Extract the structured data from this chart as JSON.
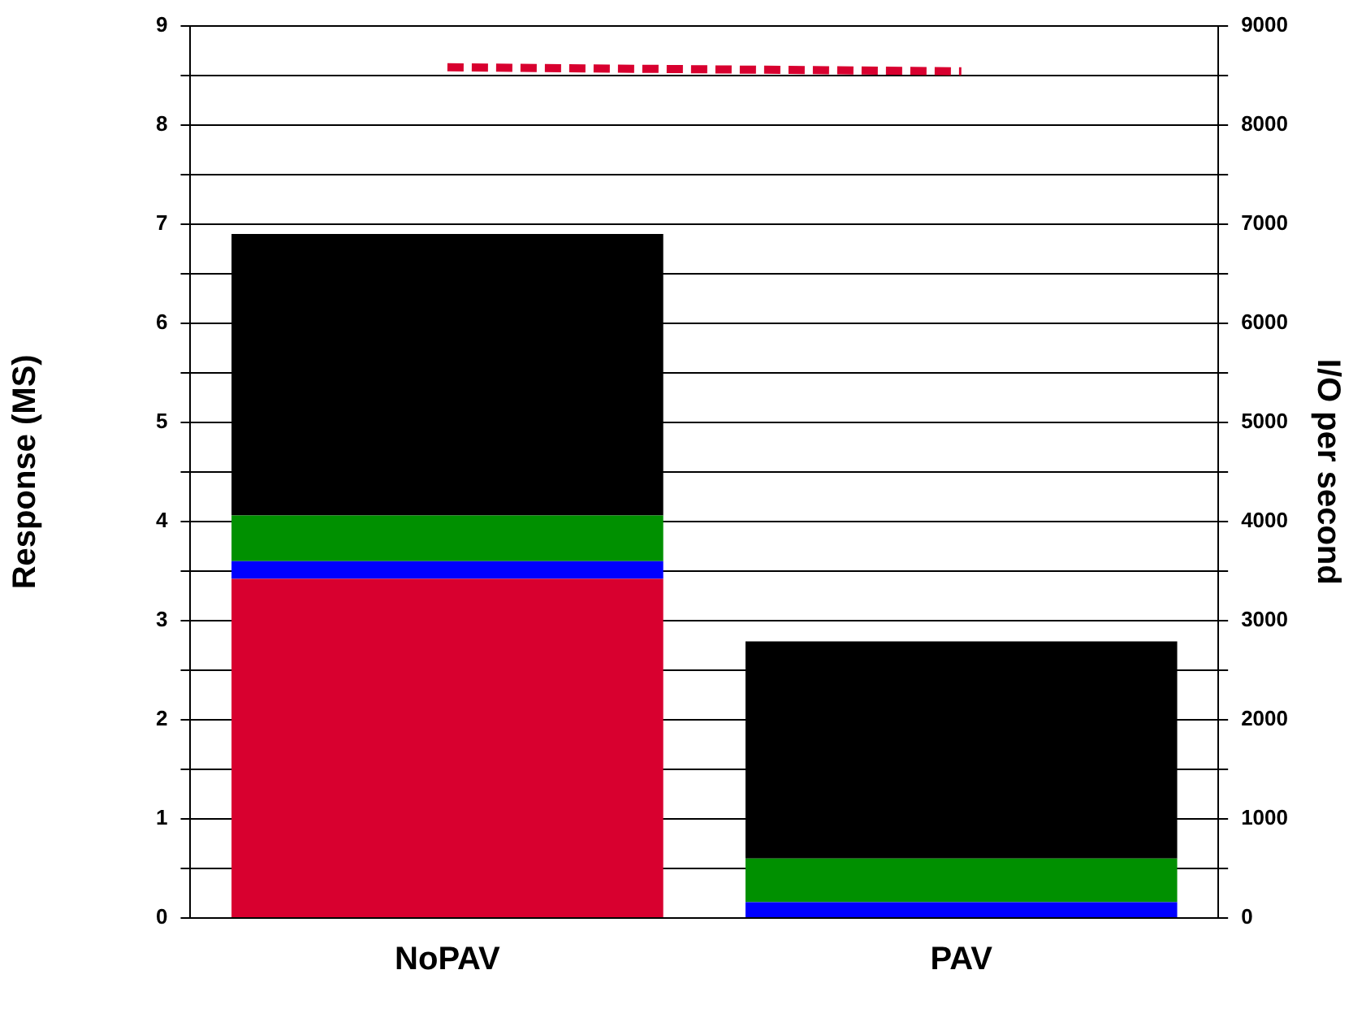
{
  "chart_data": {
    "type": "bar",
    "stacked": true,
    "categories": [
      "NoPAV",
      "PAV"
    ],
    "series": [
      {
        "color": "#d8002f",
        "values": [
          3.42,
          0
        ]
      },
      {
        "color": "#0000ff",
        "values": [
          0.18,
          0.16
        ]
      },
      {
        "color": "#009000",
        "values": [
          0.46,
          0.44
        ]
      },
      {
        "color": "#000000",
        "values": [
          2.84,
          2.19
        ]
      },
      {
        "type": "line",
        "axis": "y2",
        "color": "#d8002f",
        "line_style": "dashed",
        "marker": "none",
        "values": [
          8580,
          8540
        ]
      }
    ],
    "ylabel": "Response (MS)",
    "y2label": "I/O per second",
    "ylim": [
      0,
      9
    ],
    "yticks": [
      0,
      {
        "value": 0.5,
        "label": null
      },
      1,
      {
        "value": 1.5,
        "label": null
      },
      2,
      {
        "value": 2.5,
        "label": null
      },
      3,
      {
        "value": 3.5,
        "label": null
      },
      4,
      {
        "value": 4.5,
        "label": null
      },
      5,
      {
        "value": 5.5,
        "label": null
      },
      6,
      {
        "value": 6.5,
        "label": null
      },
      7,
      {
        "value": 7.5,
        "label": null
      },
      8,
      {
        "value": 8.5,
        "label": null
      },
      9
    ],
    "y2lim": [
      0,
      9000
    ],
    "y2ticks": [
      0,
      {
        "value": 500,
        "label": null
      },
      1000,
      {
        "value": 1500,
        "label": null
      },
      2000,
      {
        "value": 2500,
        "label": null
      },
      3000,
      {
        "value": 3500,
        "label": null
      },
      4000,
      {
        "value": 4500,
        "label": null
      },
      5000,
      {
        "value": 5500,
        "label": null
      },
      6000,
      {
        "value": 6500,
        "label": null
      },
      7000,
      {
        "value": 7500,
        "label": null
      },
      8000,
      {
        "value": 8500,
        "label": null
      },
      9000
    ],
    "grid": "y",
    "legend": false
  }
}
